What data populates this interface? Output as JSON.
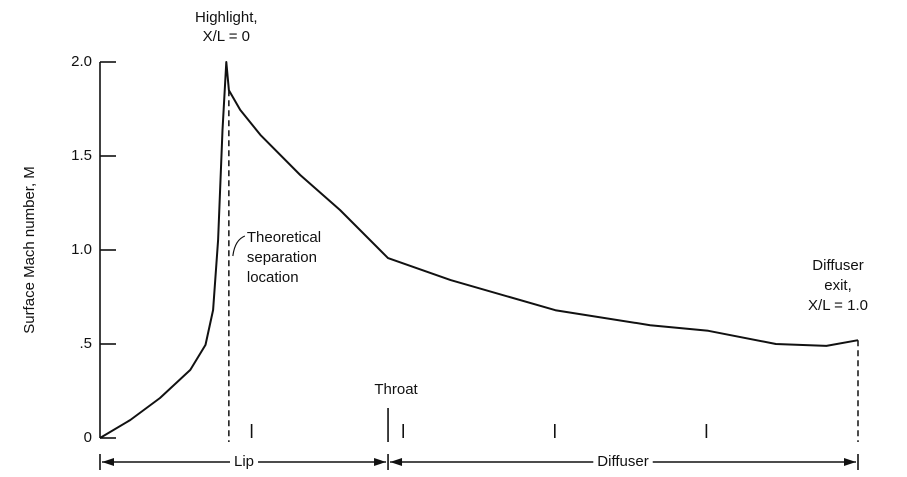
{
  "chart_data": {
    "type": "line",
    "ylabel": "Surface Mach number, M",
    "annotations": {
      "highlight": [
        "Highlight,",
        "X/L = 0"
      ],
      "separation": [
        "Theoretical",
        "separation",
        "location"
      ],
      "throat": "Throat",
      "exit": [
        "Diffuser",
        "exit,",
        "X/L = 1.0"
      ],
      "lip": "Lip",
      "diffuser": "Diffuser"
    },
    "separation_x": 0.004,
    "throat_x": 0.256,
    "exit_x": 1.0,
    "x": [
      -0.2,
      -0.152,
      -0.105,
      -0.057,
      -0.033,
      -0.021,
      -0.013,
      -0.006,
      0,
      0.004,
      0.022,
      0.054,
      0.117,
      0.18,
      0.256,
      0.355,
      0.521,
      0.671,
      0.763,
      0.87,
      0.95,
      1.0
    ],
    "series": [
      {
        "name": "M",
        "color": "#111111",
        "values": [
          0,
          0.096,
          0.213,
          0.362,
          0.495,
          0.681,
          1.053,
          1.638,
          2.0,
          1.85,
          1.745,
          1.612,
          1.399,
          1.213,
          0.957,
          0.84,
          0.68,
          0.6,
          0.57,
          0.5,
          0.49,
          0.52
        ]
      }
    ],
    "xlim": [
      -0.2,
      1.0
    ],
    "xticks": [
      0.04,
      0.28,
      0.52,
      0.76
    ],
    "ylim": [
      0,
      2.0
    ],
    "yticks": [
      0,
      {
        "value": 0.5,
        "label": ".5"
      },
      {
        "value": 1.0,
        "label": "1.0"
      },
      1.5,
      {
        "value": 2.0,
        "label": "2.0"
      }
    ]
  }
}
